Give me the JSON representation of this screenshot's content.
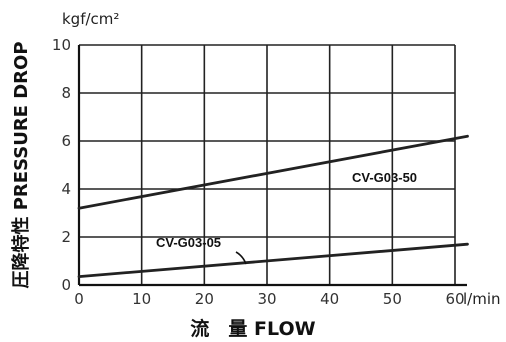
{
  "chart_data": {
    "type": "line",
    "x_unit": "l/min",
    "y_unit": "kgf/cm²",
    "xlabel": "流　量 FLOW",
    "ylabel": "圧降特性 PRESSURE DROP",
    "xlim": [
      0,
      60
    ],
    "ylim": [
      0,
      10
    ],
    "x_ticks": [
      0,
      10,
      20,
      30,
      40,
      50,
      60
    ],
    "y_ticks": [
      0,
      2,
      4,
      6,
      8,
      10
    ],
    "grid": true,
    "series": [
      {
        "name": "CV-G03-50",
        "x": [
          0,
          62
        ],
        "y": [
          3.2,
          6.2
        ],
        "color": "#222222"
      },
      {
        "name": "CV-G03-05",
        "x": [
          0,
          62
        ],
        "y": [
          0.35,
          1.7
        ],
        "color": "#222222"
      }
    ]
  }
}
